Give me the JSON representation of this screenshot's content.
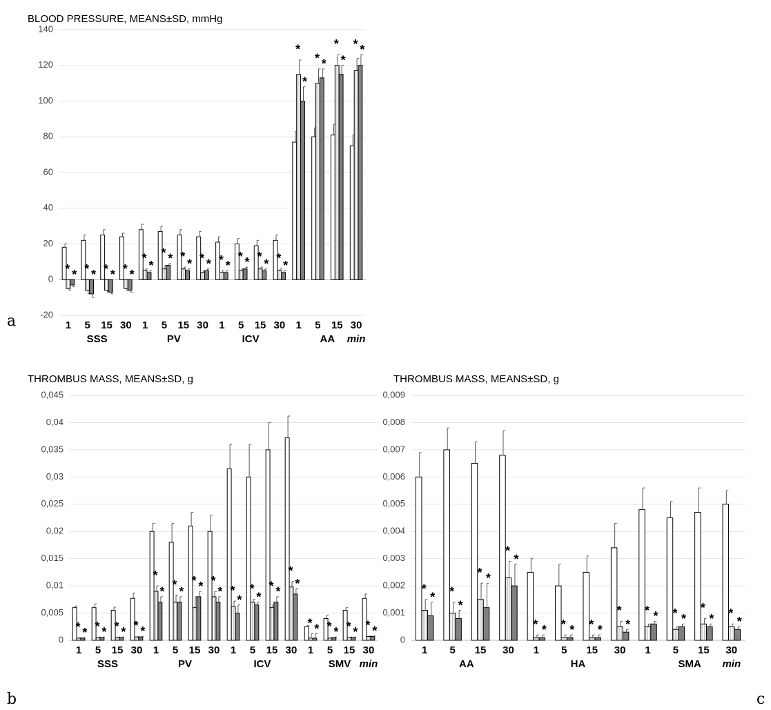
{
  "chart_data": [
    {
      "type": "bar",
      "panel": "a",
      "title": "BLOOD PRESSURE, MEANS±SD, mmHg",
      "unit": "min",
      "categories": [
        "1",
        "5",
        "15",
        "30",
        "1",
        "5",
        "15",
        "30",
        "1",
        "5",
        "15",
        "30",
        "1",
        "5",
        "15",
        "30"
      ],
      "groups": [
        "SSS",
        "PV",
        "ICV",
        "AA"
      ],
      "ylim": [
        -20,
        140
      ],
      "yticks": [
        -20,
        0,
        20,
        40,
        60,
        80,
        100,
        120,
        140
      ],
      "grid": true,
      "series": [
        {
          "color": "#ffffff",
          "values": [
            18,
            22,
            25,
            24,
            28,
            27,
            25,
            24,
            21,
            20,
            19,
            22,
            77,
            80,
            81,
            75
          ],
          "errors": [
            2,
            3,
            3,
            2,
            3,
            3,
            3,
            3,
            3,
            3,
            3,
            3,
            6,
            5,
            6,
            6
          ]
        },
        {
          "color": "#bfbfbf",
          "pattern": "stripes",
          "marker": "*",
          "values": [
            -5,
            -6,
            -6,
            -5,
            5,
            6,
            6,
            4,
            4,
            5,
            6,
            5,
            115,
            110,
            120,
            117
          ],
          "errors": [
            1,
            2,
            1,
            1,
            1,
            2,
            1,
            1,
            1,
            1,
            1,
            1,
            8,
            8,
            6,
            7
          ]
        },
        {
          "color": "#808080",
          "marker": "*",
          "values": [
            -3,
            -8,
            -7,
            -6,
            4,
            8,
            5,
            5,
            4,
            6,
            5,
            4,
            100,
            113,
            115,
            120
          ],
          "errors": [
            1,
            2,
            1,
            1,
            1,
            1,
            1,
            1,
            1,
            1,
            1,
            1,
            8,
            5,
            5,
            6
          ]
        }
      ]
    },
    {
      "type": "bar",
      "panel": "b",
      "title": "THROMBUS MASS, MEANS±SD, g",
      "unit": "min",
      "categories": [
        "1",
        "5",
        "15",
        "30",
        "1",
        "5",
        "15",
        "30",
        "1",
        "5",
        "15",
        "30",
        "1",
        "5",
        "15",
        "30"
      ],
      "groups": [
        "SSS",
        "PV",
        "ICV",
        "SMV"
      ],
      "ylim": [
        0,
        0.045
      ],
      "yticks": [
        0,
        {
          "value": 0.005,
          "label": "0,005"
        },
        {
          "value": 0.01,
          "label": "0,01"
        },
        {
          "value": 0.015,
          "label": "0,015"
        },
        {
          "value": 0.02,
          "label": "0,02"
        },
        {
          "value": 0.025,
          "label": "0,025"
        },
        {
          "value": 0.03,
          "label": "0,03"
        },
        {
          "value": 0.035,
          "label": "0,035"
        },
        {
          "value": 0.04,
          "label": "0,04"
        },
        {
          "value": 0.045,
          "label": "0,045"
        }
      ],
      "grid": true,
      "series": [
        {
          "color": "#ffffff",
          "values": [
            0.006,
            0.006,
            0.0055,
            0.0077,
            0.02,
            0.018,
            0.021,
            0.02,
            0.0315,
            0.03,
            0.035,
            0.0372,
            0.0025,
            0.004,
            0.0055,
            0.0077
          ],
          "errors": [
            0.0003,
            0.0007,
            0.0006,
            0.001,
            0.0015,
            0.0035,
            0.0025,
            0.003,
            0.0045,
            0.006,
            0.005,
            0.004,
            0.0002,
            0.0006,
            0.0005,
            0.0008
          ]
        },
        {
          "color": "#bfbfbf",
          "pattern": "stripes",
          "marker": "*",
          "values": [
            0.0004,
            0.0005,
            0.0005,
            0.0006,
            0.009,
            0.007,
            0.006,
            0.008,
            0.0062,
            0.007,
            0.006,
            0.0098,
            0.0004,
            0.0004,
            0.0005,
            0.0007
          ],
          "errors": [
            0.0001,
            0.0001,
            0.0001,
            0.0001,
            0.001,
            0.0013,
            0.002,
            0.001,
            0.001,
            0.0005,
            0.0005,
            0.001,
            0.0008,
            0.0001,
            0.0001,
            0.0001
          ]
        },
        {
          "color": "#808080",
          "marker": "*",
          "values": [
            0.0004,
            0.0005,
            0.0005,
            0.0006,
            0.007,
            0.007,
            0.008,
            0.007,
            0.005,
            0.0065,
            0.007,
            0.0085,
            0.0004,
            0.0005,
            0.0005,
            0.0007
          ],
          "errors": [
            0.0001,
            0.0001,
            0.0001,
            0.0001,
            0.001,
            0.001,
            0.001,
            0.001,
            0.0015,
            0.0005,
            0.001,
            0.001,
            0.0008,
            0.0001,
            0.0001,
            0.0001
          ]
        }
      ]
    },
    {
      "type": "bar",
      "panel": "c",
      "title": "THROMBUS MASS, MEANS±SD, g",
      "unit": "min",
      "categories": [
        "1",
        "5",
        "15",
        "30",
        "1",
        "5",
        "15",
        "30",
        "1",
        "5",
        "15",
        "30"
      ],
      "groups": [
        "AA",
        "HA",
        "SMA"
      ],
      "ylim": [
        0,
        0.009
      ],
      "yticks": [
        0,
        {
          "value": 0.001,
          "label": "0,001"
        },
        {
          "value": 0.002,
          "label": "0,002"
        },
        {
          "value": 0.003,
          "label": "0,003"
        },
        {
          "value": 0.004,
          "label": "0,004"
        },
        {
          "value": 0.005,
          "label": "0,005"
        },
        {
          "value": 0.006,
          "label": "0,006"
        },
        {
          "value": 0.007,
          "label": "0,007"
        },
        {
          "value": 0.008,
          "label": "0,008"
        },
        {
          "value": 0.009,
          "label": "0,009"
        }
      ],
      "grid": true,
      "series": [
        {
          "color": "#ffffff",
          "values": [
            0.006,
            0.007,
            0.0065,
            0.0068,
            0.0025,
            0.002,
            0.0025,
            0.0034,
            0.0048,
            0.0045,
            0.0047,
            0.005
          ],
          "errors": [
            0.0009,
            0.0008,
            0.0008,
            0.0009,
            0.0005,
            0.0008,
            0.0006,
            0.0009,
            0.0008,
            0.0006,
            0.0009,
            0.0005
          ]
        },
        {
          "color": "#bfbfbf",
          "pattern": "stripes",
          "marker": "*",
          "values": [
            0.0011,
            0.001,
            0.0015,
            0.0023,
            0.0001,
            0.0001,
            0.0001,
            0.0005,
            0.0005,
            0.0004,
            0.0006,
            0.0005
          ],
          "errors": [
            0.0004,
            0.0004,
            0.0006,
            0.0006,
            0.0001,
            0.0001,
            0.0001,
            0.0002,
            0.0001,
            0.0001,
            0.0002,
            0.0001
          ]
        },
        {
          "color": "#808080",
          "marker": "*",
          "values": [
            0.0009,
            0.0008,
            0.0012,
            0.002,
            0.0001,
            0.0001,
            0.0001,
            0.0003,
            0.0006,
            0.0005,
            0.0005,
            0.0004
          ],
          "errors": [
            0.0005,
            0.0003,
            0.0009,
            0.0008,
            0.0001,
            0.0001,
            0.0001,
            0.0001,
            0.0001,
            0.0001,
            0.0001,
            0.0001
          ]
        }
      ]
    }
  ]
}
